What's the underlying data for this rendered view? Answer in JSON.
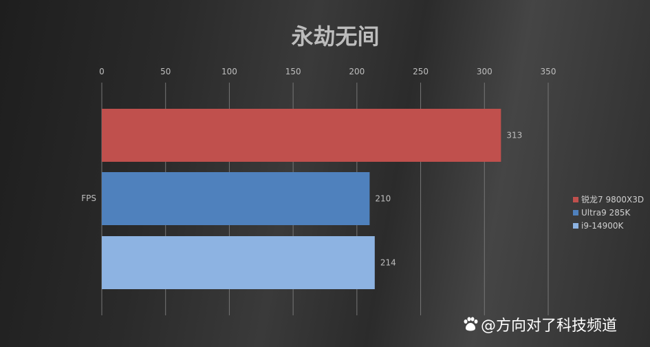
{
  "chart_data": {
    "type": "bar",
    "orientation": "horizontal",
    "title": "永劫无间",
    "categories": [
      "FPS"
    ],
    "series": [
      {
        "name": "锐龙7 9800X3D",
        "values": [
          313
        ],
        "color": "#c0504d"
      },
      {
        "name": "Ultra9 285K",
        "values": [
          210
        ],
        "color": "#4f81bd"
      },
      {
        "name": "i9-14900K",
        "values": [
          214
        ],
        "color": "#8db3e2"
      }
    ],
    "xlim": [
      0,
      350
    ],
    "xticks": [
      0,
      50,
      100,
      150,
      200,
      250,
      300,
      350
    ],
    "xaxis_position": "top",
    "grid": true,
    "legend_position": "right"
  },
  "watermark": {
    "text": "@方向对了科技频道",
    "icon": "baidu-paw-icon"
  }
}
